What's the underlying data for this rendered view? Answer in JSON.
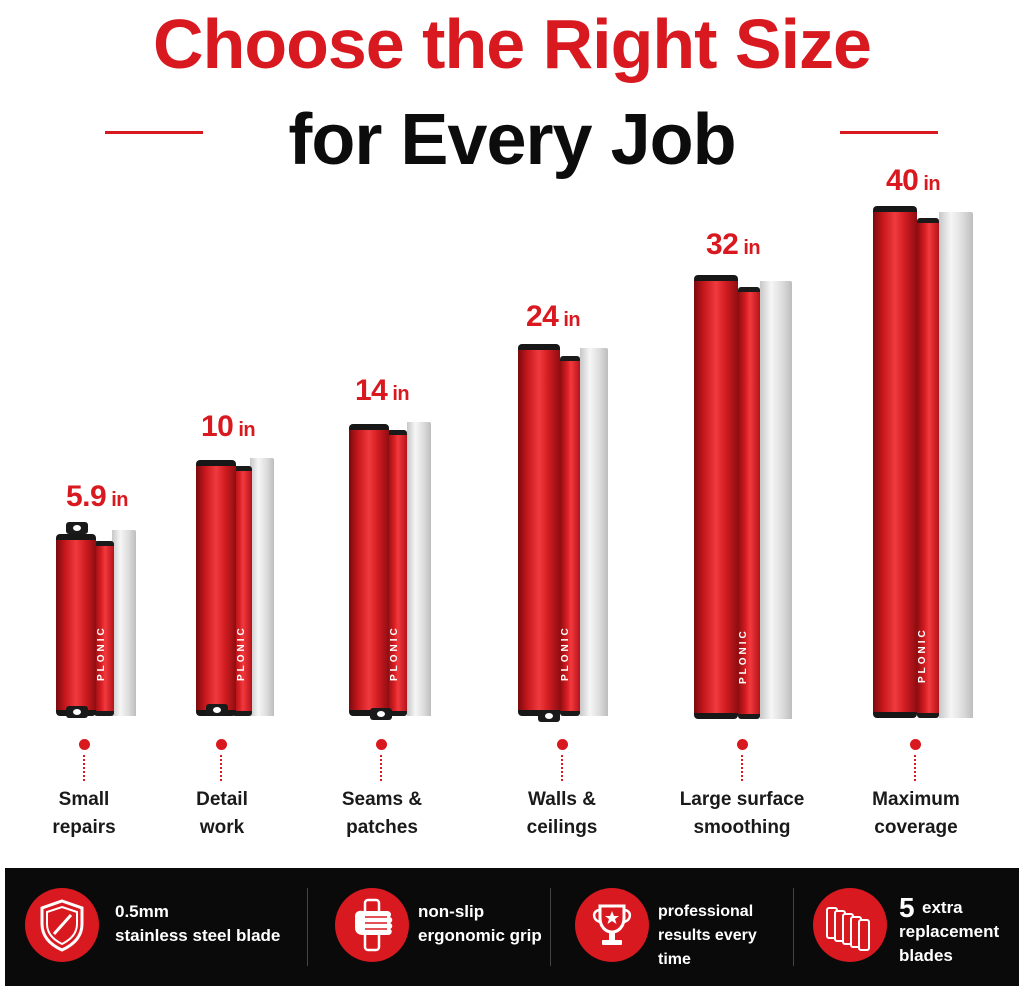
{
  "header": {
    "title_line1": "Choose the Right Size",
    "title_line2": "for Every Job"
  },
  "brand": "PLONIC",
  "tools": [
    {
      "size": "5.9",
      "unit": "in",
      "use": "Small\nrepairs"
    },
    {
      "size": "10",
      "unit": "in",
      "use": "Detail\nwork"
    },
    {
      "size": "14",
      "unit": "in",
      "use": "Seams &\npatches"
    },
    {
      "size": "24",
      "unit": "in",
      "use": "Walls &\nceilings"
    },
    {
      "size": "32",
      "unit": "in",
      "use": "Large surface\nsmoothing"
    },
    {
      "size": "40",
      "unit": "in",
      "use": "Maximum\ncoverage"
    }
  ],
  "features": [
    {
      "icon": "shield-icon",
      "text": "0.5mm\nstainless steel blade"
    },
    {
      "icon": "grip-hand-icon",
      "text": "non-slip\nergonomic grip"
    },
    {
      "icon": "trophy-icon",
      "text": "professional\nresults every time"
    },
    {
      "icon": "blades-stack-icon",
      "count": "5",
      "text": "extra\nreplacement\nblades"
    }
  ],
  "colors": {
    "accent": "#d8191f",
    "title_dark": "#0c0c0c",
    "feature_bar": "#0a0a0a"
  }
}
